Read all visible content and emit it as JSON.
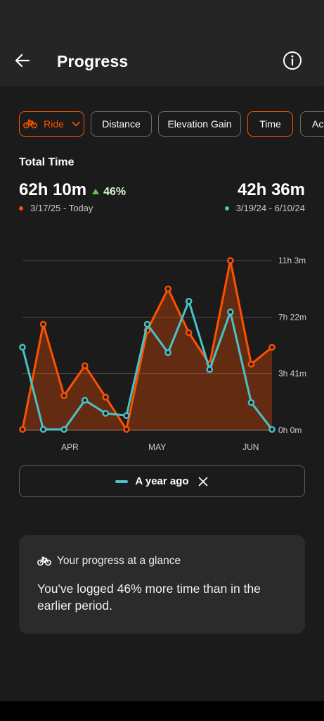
{
  "header": {
    "title": "Progress",
    "back_icon": "arrow-left-icon",
    "info_icon": "info-icon"
  },
  "filters": {
    "sport": {
      "label": "Ride",
      "icon": "bike-icon"
    },
    "metrics": [
      {
        "label": "Distance",
        "selected": false
      },
      {
        "label": "Elevation Gain",
        "selected": false
      },
      {
        "label": "Time",
        "selected": true
      },
      {
        "label": "Act",
        "selected": false
      }
    ]
  },
  "summary": {
    "title": "Total Time",
    "current": {
      "value": "62h 10m",
      "change": "46%",
      "range": "3/17/25 - Today"
    },
    "previous": {
      "value": "42h 36m",
      "range": "3/19/24 - 6/10/24"
    }
  },
  "chart_data": {
    "type": "line",
    "y_tick_labels": [
      "11h 3m",
      "7h 22m",
      "3h 41m",
      "0h 0m"
    ],
    "x_tick_labels": [
      "APR",
      "MAY",
      "JUN"
    ],
    "y_unit": "hours",
    "ylim": [
      0,
      11.05
    ],
    "grid": true,
    "series": [
      {
        "name": "",
        "color": "#fc5200",
        "area": true,
        "values": [
          0.05,
          6.9,
          2.25,
          4.2,
          2.15,
          0.05,
          6.5,
          9.2,
          6.35,
          4.3,
          11.05,
          4.3,
          5.4
        ]
      },
      {
        "name": "A year ago",
        "color": "#49c3c9",
        "area": false,
        "values": [
          5.4,
          0.05,
          0.05,
          1.95,
          1.1,
          0.95,
          6.9,
          5.05,
          8.4,
          3.95,
          7.7,
          1.8,
          0.05
        ]
      }
    ]
  },
  "legend": {
    "label": "A year ago",
    "color": "#49c3c9"
  },
  "glance": {
    "heading": "Your progress at a glance",
    "text": "You've logged 46% more time than in the earlier period."
  },
  "colors": {
    "accent": "#fc5200",
    "compare": "#49c3c9",
    "positive": "#5ec64c"
  }
}
